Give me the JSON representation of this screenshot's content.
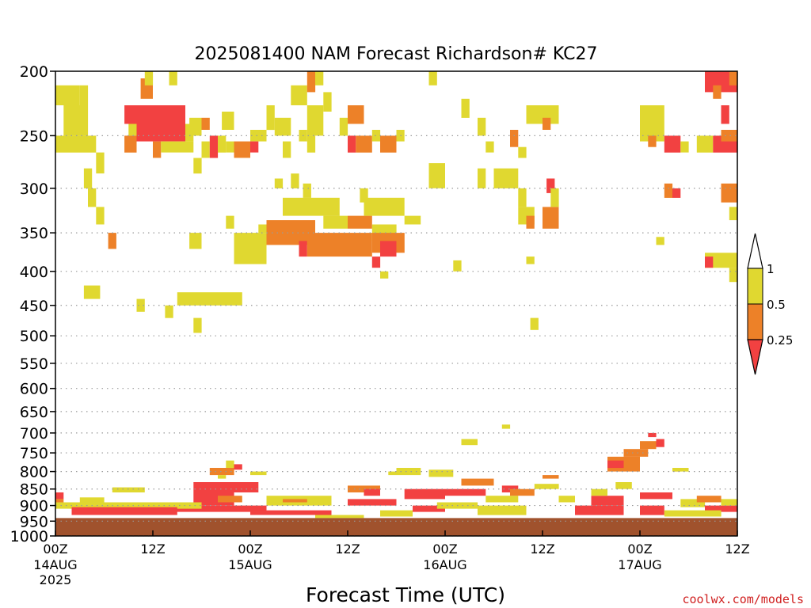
{
  "chart_data": {
    "type": "heatmap",
    "title": "2025081400 NAM Forecast Richardson# KC27",
    "xlabel": "Forecast Time (UTC)",
    "ylabel": "",
    "ylim": [
      1000,
      200
    ],
    "y_scale": "log-pressure",
    "y_ticks": [
      "200",
      "250",
      "300",
      "350",
      "400",
      "450",
      "500",
      "550",
      "600",
      "650",
      "700",
      "750",
      "800",
      "850",
      "900",
      "950",
      "1000"
    ],
    "x_ticks": [
      {
        "hour": 0,
        "label": "00Z",
        "sub": "14AUG",
        "sub2": "2025"
      },
      {
        "hour": 12,
        "label": "12Z",
        "sub": "",
        "sub2": ""
      },
      {
        "hour": 24,
        "label": "00Z",
        "sub": "15AUG",
        "sub2": ""
      },
      {
        "hour": 36,
        "label": "12Z",
        "sub": "",
        "sub2": ""
      },
      {
        "hour": 48,
        "label": "00Z",
        "sub": "16AUG",
        "sub2": ""
      },
      {
        "hour": 60,
        "label": "12Z",
        "sub": "",
        "sub2": ""
      },
      {
        "hour": 72,
        "label": "00Z",
        "sub": "17AUG",
        "sub2": ""
      },
      {
        "hour": 84,
        "label": "12Z",
        "sub": "",
        "sub2": ""
      }
    ],
    "xlim_hours": [
      0,
      84
    ],
    "grid": true,
    "legend": {
      "position": "right",
      "labels": [
        "1",
        "0.5",
        "0.25"
      ],
      "bins": [
        {
          "range": "0.5-1",
          "color": "#e0d830"
        },
        {
          "range": "0.25-0.5",
          "color": "#ed8128"
        },
        {
          "range": "<0.25",
          "color": "#f24141"
        }
      ]
    },
    "colors": {
      "low": "#f24141",
      "mid": "#ed8128",
      "high": "#e0d830",
      "ground": "#a0522d"
    },
    "ground_pressure": 940,
    "cells": [
      [
        0,
        3,
        210,
        225,
        "high"
      ],
      [
        3,
        4,
        210,
        225,
        "high"
      ],
      [
        1,
        4,
        225,
        250,
        "high"
      ],
      [
        0,
        4,
        250,
        265,
        "high"
      ],
      [
        4,
        5,
        250,
        265,
        "high"
      ],
      [
        5,
        6,
        265,
        285,
        "high"
      ],
      [
        3.5,
        4.5,
        280,
        300,
        "high"
      ],
      [
        4,
        5,
        300,
        320,
        "high"
      ],
      [
        5,
        6,
        320,
        340,
        "high"
      ],
      [
        6.5,
        7.5,
        350,
        370,
        "mid"
      ],
      [
        3.5,
        5.5,
        420,
        440,
        "high"
      ],
      [
        9,
        11,
        225,
        250,
        "high"
      ],
      [
        8.5,
        10,
        250,
        265,
        "mid"
      ],
      [
        10.5,
        12,
        205,
        220,
        "mid"
      ],
      [
        11,
        12,
        200,
        210,
        "high"
      ],
      [
        8.5,
        16,
        225,
        240,
        "low"
      ],
      [
        10,
        16,
        240,
        255,
        "low"
      ],
      [
        12,
        13,
        255,
        270,
        "mid"
      ],
      [
        13,
        17,
        255,
        265,
        "high"
      ],
      [
        16,
        17,
        240,
        255,
        "high"
      ],
      [
        14,
        15,
        200,
        210,
        "high"
      ],
      [
        16.5,
        18,
        235,
        250,
        "high"
      ],
      [
        18,
        19,
        235,
        245,
        "mid"
      ],
      [
        18,
        19,
        255,
        270,
        "high"
      ],
      [
        17,
        18,
        270,
        285,
        "high"
      ],
      [
        19,
        20,
        250,
        270,
        "low"
      ],
      [
        20,
        21,
        250,
        265,
        "high"
      ],
      [
        20.5,
        22,
        230,
        245,
        "high"
      ],
      [
        21,
        22,
        255,
        265,
        "high"
      ],
      [
        22,
        24,
        255,
        270,
        "mid"
      ],
      [
        24,
        26,
        245,
        255,
        "high"
      ],
      [
        24,
        25,
        255,
        265,
        "low"
      ],
      [
        26,
        27,
        225,
        245,
        "high"
      ],
      [
        27,
        29,
        235,
        250,
        "high"
      ],
      [
        28,
        29,
        255,
        270,
        "high"
      ],
      [
        30,
        31,
        245,
        255,
        "high"
      ],
      [
        29,
        31,
        210,
        225,
        "high"
      ],
      [
        31,
        33,
        225,
        250,
        "high"
      ],
      [
        31,
        32,
        250,
        265,
        "high"
      ],
      [
        29,
        30,
        285,
        300,
        "high"
      ],
      [
        16.5,
        18,
        350,
        370,
        "high"
      ],
      [
        15,
        23,
        430,
        450,
        "high"
      ],
      [
        21,
        22,
        330,
        345,
        "high"
      ],
      [
        22,
        26,
        350,
        390,
        "high"
      ],
      [
        25,
        26,
        340,
        350,
        "high"
      ],
      [
        26,
        32,
        335,
        365,
        "mid"
      ],
      [
        28,
        35,
        310,
        330,
        "high"
      ],
      [
        30,
        31,
        360,
        380,
        "low"
      ],
      [
        31,
        39,
        350,
        380,
        "mid"
      ],
      [
        33,
        36,
        330,
        345,
        "high"
      ],
      [
        36,
        39,
        330,
        345,
        "mid"
      ],
      [
        39,
        42,
        340,
        360,
        "high"
      ],
      [
        39,
        43,
        350,
        375,
        "mid"
      ],
      [
        40,
        42,
        360,
        380,
        "low"
      ],
      [
        38,
        43,
        310,
        330,
        "high"
      ],
      [
        43,
        45,
        330,
        340,
        "high"
      ],
      [
        30.5,
        31.5,
        295,
        310,
        "high"
      ],
      [
        27,
        28,
        290,
        300,
        "high"
      ],
      [
        37.5,
        38.5,
        300,
        315,
        "high"
      ],
      [
        39,
        40,
        380,
        395,
        "low"
      ],
      [
        40,
        41,
        400,
        410,
        "high"
      ],
      [
        31,
        32,
        200,
        215,
        "mid"
      ],
      [
        32,
        33,
        200,
        210,
        "high"
      ],
      [
        33,
        34,
        215,
        230,
        "high"
      ],
      [
        36,
        38,
        225,
        240,
        "mid"
      ],
      [
        35,
        36,
        235,
        250,
        "high"
      ],
      [
        36,
        37,
        250,
        265,
        "low"
      ],
      [
        37,
        39,
        250,
        265,
        "mid"
      ],
      [
        39,
        40,
        245,
        255,
        "high"
      ],
      [
        40,
        42,
        250,
        265,
        "mid"
      ],
      [
        42,
        43,
        245,
        255,
        "high"
      ],
      [
        46,
        47,
        200,
        210,
        "high"
      ],
      [
        46,
        48,
        275,
        300,
        "high"
      ],
      [
        50,
        51,
        220,
        235,
        "high"
      ],
      [
        52,
        53,
        235,
        250,
        "high"
      ],
      [
        53,
        54,
        255,
        265,
        "high"
      ],
      [
        54,
        56,
        280,
        300,
        "high"
      ],
      [
        52,
        53,
        280,
        300,
        "high"
      ],
      [
        56,
        57,
        245,
        260,
        "mid"
      ],
      [
        57,
        58,
        260,
        270,
        "high"
      ],
      [
        56,
        57,
        280,
        300,
        "high"
      ],
      [
        57,
        58,
        300,
        320,
        "high"
      ],
      [
        58,
        62,
        225,
        240,
        "high"
      ],
      [
        60,
        61,
        235,
        245,
        "mid"
      ],
      [
        57,
        59,
        320,
        340,
        "high"
      ],
      [
        58,
        59,
        330,
        345,
        "mid"
      ],
      [
        60,
        62,
        320,
        345,
        "mid"
      ],
      [
        60.5,
        61.5,
        290,
        305,
        "low"
      ],
      [
        61,
        62,
        300,
        320,
        "high"
      ],
      [
        58,
        59,
        380,
        390,
        "high"
      ],
      [
        49,
        50,
        385,
        400,
        "high"
      ],
      [
        58.5,
        59.5,
        470,
        490,
        "high"
      ],
      [
        10,
        11,
        440,
        460,
        "high"
      ],
      [
        13.5,
        14.5,
        450,
        470,
        "high"
      ],
      [
        17,
        18,
        470,
        495,
        "high"
      ],
      [
        72,
        75,
        225,
        255,
        "high"
      ],
      [
        73,
        74,
        250,
        260,
        "mid"
      ],
      [
        75,
        77,
        250,
        265,
        "low"
      ],
      [
        77,
        78,
        255,
        265,
        "high"
      ],
      [
        79,
        81,
        250,
        265,
        "high"
      ],
      [
        81,
        84,
        250,
        265,
        "low"
      ],
      [
        82,
        84,
        245,
        255,
        "mid"
      ],
      [
        80,
        84,
        200,
        215,
        "low"
      ],
      [
        82,
        83,
        225,
        240,
        "low"
      ],
      [
        83,
        84,
        200,
        210,
        "mid"
      ],
      [
        81,
        82,
        210,
        220,
        "mid"
      ],
      [
        75,
        76,
        295,
        310,
        "mid"
      ],
      [
        76,
        77,
        300,
        310,
        "low"
      ],
      [
        82,
        84,
        295,
        315,
        "mid"
      ],
      [
        83,
        84,
        320,
        335,
        "high"
      ],
      [
        80,
        84,
        375,
        395,
        "high"
      ],
      [
        80,
        81,
        380,
        395,
        "low"
      ],
      [
        83,
        84,
        395,
        415,
        "high"
      ],
      [
        74,
        75,
        355,
        365,
        "high"
      ],
      [
        50,
        52,
        715,
        730,
        "high"
      ],
      [
        55,
        56,
        680,
        690,
        "high"
      ],
      [
        70,
        73,
        740,
        760,
        "mid"
      ],
      [
        72,
        74,
        720,
        740,
        "mid"
      ],
      [
        74,
        75,
        715,
        735,
        "low"
      ],
      [
        68,
        72,
        760,
        800,
        "mid"
      ],
      [
        68,
        70,
        770,
        790,
        "low"
      ],
      [
        73,
        74,
        700,
        710,
        "low"
      ],
      [
        76,
        77,
        790,
        800,
        "mid"
      ],
      [
        76,
        78,
        790,
        800,
        "high"
      ],
      [
        21,
        22,
        770,
        790,
        "high"
      ],
      [
        22,
        23,
        780,
        795,
        "low"
      ],
      [
        19,
        22,
        790,
        810,
        "mid"
      ],
      [
        20,
        21,
        810,
        820,
        "high"
      ],
      [
        24,
        26,
        800,
        810,
        "high"
      ],
      [
        17,
        25,
        830,
        860,
        "low"
      ],
      [
        17,
        22,
        860,
        900,
        "low"
      ],
      [
        20,
        23,
        870,
        890,
        "mid"
      ],
      [
        12,
        26,
        900,
        920,
        "low"
      ],
      [
        0,
        18,
        890,
        910,
        "high"
      ],
      [
        2,
        15,
        905,
        930,
        "low"
      ],
      [
        3,
        6,
        875,
        890,
        "high"
      ],
      [
        7,
        11,
        845,
        860,
        "high"
      ],
      [
        9,
        10,
        850,
        860,
        "high"
      ],
      [
        26,
        34,
        870,
        900,
        "high"
      ],
      [
        28,
        31,
        880,
        890,
        "mid"
      ],
      [
        24,
        34,
        915,
        930,
        "low"
      ],
      [
        36,
        40,
        840,
        860,
        "mid"
      ],
      [
        38,
        40,
        850,
        870,
        "low"
      ],
      [
        36,
        42,
        880,
        900,
        "low"
      ],
      [
        41,
        42,
        800,
        810,
        "high"
      ],
      [
        42,
        45,
        790,
        810,
        "high"
      ],
      [
        46,
        49,
        795,
        815,
        "high"
      ],
      [
        43,
        48,
        850,
        880,
        "low"
      ],
      [
        48,
        53,
        850,
        870,
        "low"
      ],
      [
        44,
        48,
        900,
        920,
        "low"
      ],
      [
        47,
        52,
        890,
        910,
        "high"
      ],
      [
        53,
        57,
        870,
        890,
        "high"
      ],
      [
        55,
        57,
        840,
        860,
        "low"
      ],
      [
        56,
        59,
        850,
        870,
        "mid"
      ],
      [
        52,
        58,
        900,
        930,
        "high"
      ],
      [
        50,
        54,
        820,
        840,
        "mid"
      ],
      [
        59,
        62,
        835,
        850,
        "high"
      ],
      [
        60,
        62,
        810,
        820,
        "mid"
      ],
      [
        62,
        64,
        870,
        890,
        "high"
      ],
      [
        64,
        70,
        900,
        930,
        "low"
      ],
      [
        66,
        70,
        870,
        900,
        "low"
      ],
      [
        66,
        68,
        850,
        870,
        "high"
      ],
      [
        69,
        71,
        830,
        850,
        "high"
      ],
      [
        72,
        76,
        860,
        880,
        "low"
      ],
      [
        72,
        75,
        900,
        930,
        "low"
      ],
      [
        77,
        80,
        880,
        905,
        "high"
      ],
      [
        80,
        84,
        900,
        920,
        "low"
      ],
      [
        79,
        82,
        870,
        890,
        "mid"
      ],
      [
        82,
        84,
        880,
        900,
        "high"
      ],
      [
        0,
        1,
        860,
        880,
        "low"
      ],
      [
        0,
        1,
        880,
        890,
        "mid"
      ],
      [
        75,
        82,
        915,
        935,
        "high"
      ],
      [
        40,
        44,
        915,
        935,
        "high"
      ],
      [
        32,
        38,
        930,
        940,
        "high"
      ]
    ]
  },
  "watermark": "coolwx.com/models"
}
